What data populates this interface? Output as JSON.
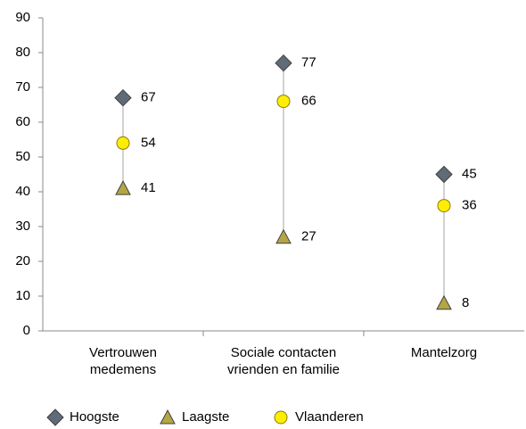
{
  "chart_data": {
    "type": "highlow",
    "categories": [
      "Vertrouwen medemens",
      "Sociale contacten vrienden en familie",
      "Mantelzorg"
    ],
    "series": [
      {
        "name": "Hoogste",
        "color": "#5f6b76",
        "marker": "diamond",
        "values": [
          67,
          77,
          45
        ]
      },
      {
        "name": "Laagste",
        "color": "#b4a545",
        "marker": "triangle",
        "values": [
          41,
          27,
          8
        ]
      },
      {
        "name": "Vlaanderen",
        "color": "#ffee00",
        "marker": "circle",
        "values": [
          54,
          66,
          36
        ]
      }
    ],
    "ylim": [
      0,
      90
    ],
    "yticks": [
      0,
      10,
      20,
      30,
      40,
      50,
      60,
      70,
      80,
      90
    ],
    "grid": false,
    "legend": "bottom"
  }
}
